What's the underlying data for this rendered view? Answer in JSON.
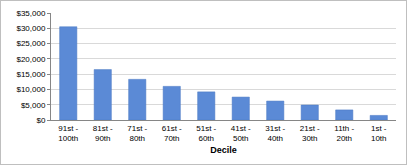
{
  "chart_data": {
    "type": "bar",
    "x_label": "Decile",
    "categories": [
      "91st - 100th",
      "81st - 90th",
      "71st - 80th",
      "61st - 70th",
      "51st - 60th",
      "41st - 50th",
      "31st - 40th",
      "21st - 30th",
      "11th - 20th",
      "1st - 10th"
    ],
    "values": [
      30500,
      16500,
      13300,
      11000,
      9200,
      7500,
      6200,
      4900,
      3300,
      1500
    ],
    "color": "#5b8ad6",
    "ylim": [
      0,
      35000
    ],
    "yticks": [
      {
        "value": 0,
        "label": "$0"
      },
      {
        "value": 5000,
        "label": "$5,000"
      },
      {
        "value": 10000,
        "label": "$10,000"
      },
      {
        "value": 15000,
        "label": "$15,000"
      },
      {
        "value": 20000,
        "label": "$20,000"
      },
      {
        "value": 25000,
        "label": "$25,000"
      },
      {
        "value": 30000,
        "label": "$30,000"
      },
      {
        "value": 35000,
        "label": "$35,000"
      }
    ],
    "grid": true
  }
}
